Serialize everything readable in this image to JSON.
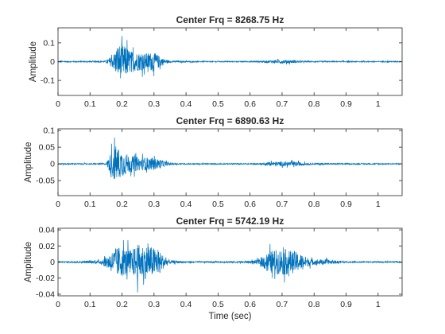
{
  "chart_data": [
    {
      "type": "line",
      "title": "Center Frq = 8268.75 Hz",
      "ylabel": "Amplitude",
      "xlabel": "",
      "xlim": [
        0,
        1.075
      ],
      "ylim": [
        -0.18,
        0.18
      ],
      "xticks": [
        0,
        0.1,
        0.2,
        0.3,
        0.4,
        0.5,
        0.6,
        0.7,
        0.8,
        0.9,
        1
      ],
      "xtick_labels": [
        "0",
        "0.1",
        "0.2",
        "0.3",
        "0.4",
        "0.5",
        "0.6",
        "0.7",
        "0.8",
        "0.9",
        "1"
      ],
      "yticks": [
        -0.1,
        0,
        0.1
      ],
      "ytick_labels": [
        "-0.1",
        "0",
        "0.1"
      ],
      "color": "#0072BD",
      "series": [
        {
          "x": [
            0,
            0.05,
            0.1,
            0.13,
            0.15,
            0.17,
            0.19,
            0.21,
            0.23,
            0.25,
            0.27,
            0.29,
            0.31,
            0.33,
            0.35,
            0.4,
            0.45,
            0.5,
            0.55,
            0.6,
            0.63,
            0.66,
            0.68,
            0.7,
            0.72,
            0.74,
            0.76,
            0.78,
            0.8,
            0.85,
            0.9,
            0.95,
            1.0,
            1.075
          ],
          "values": [
            0.006,
            0.006,
            0.006,
            0.006,
            0.01,
            0.06,
            0.17,
            0.15,
            0.1,
            0.09,
            0.08,
            0.09,
            0.07,
            0.03,
            0.008,
            0.006,
            0.005,
            0.005,
            0.005,
            0.005,
            0.008,
            0.012,
            0.015,
            0.018,
            0.016,
            0.014,
            0.008,
            0.006,
            0.006,
            0.005,
            0.005,
            0.005,
            0.005,
            0.005
          ]
        }
      ]
    },
    {
      "type": "line",
      "title": "Center Frq = 6890.63 Hz",
      "ylabel": "Amplitude",
      "xlabel": "",
      "xlim": [
        0,
        1.075
      ],
      "ylim": [
        -0.095,
        0.105
      ],
      "xticks": [
        0,
        0.1,
        0.2,
        0.3,
        0.4,
        0.5,
        0.6,
        0.7,
        0.8,
        0.9,
        1
      ],
      "xtick_labels": [
        "0",
        "0.1",
        "0.2",
        "0.3",
        "0.4",
        "0.5",
        "0.6",
        "0.7",
        "0.8",
        "0.9",
        "1"
      ],
      "yticks": [
        -0.05,
        0,
        0.05,
        0.1
      ],
      "ytick_labels": [
        "-0.05",
        "0",
        "0.05",
        "0.1"
      ],
      "color": "#0072BD",
      "series": [
        {
          "x": [
            0,
            0.05,
            0.1,
            0.15,
            0.17,
            0.18,
            0.2,
            0.22,
            0.24,
            0.26,
            0.28,
            0.3,
            0.32,
            0.34,
            0.36,
            0.4,
            0.45,
            0.5,
            0.55,
            0.6,
            0.63,
            0.65,
            0.67,
            0.7,
            0.73,
            0.76,
            0.78,
            0.8,
            0.82,
            0.85,
            0.9,
            0.95,
            1.0,
            1.075
          ],
          "values": [
            0.003,
            0.003,
            0.003,
            0.004,
            0.08,
            0.1,
            0.07,
            0.05,
            0.04,
            0.035,
            0.035,
            0.03,
            0.025,
            0.01,
            0.004,
            0.003,
            0.003,
            0.003,
            0.003,
            0.003,
            0.004,
            0.008,
            0.012,
            0.012,
            0.012,
            0.01,
            0.006,
            0.004,
            0.006,
            0.003,
            0.003,
            0.003,
            0.003,
            0.003
          ]
        }
      ]
    },
    {
      "type": "line",
      "title": "Center Frq = 5742.19 Hz",
      "ylabel": "Amplitude",
      "xlabel": "Time (sec)",
      "xlim": [
        0,
        1.075
      ],
      "ylim": [
        -0.042,
        0.042
      ],
      "xticks": [
        0,
        0.1,
        0.2,
        0.3,
        0.4,
        0.5,
        0.6,
        0.7,
        0.8,
        0.9,
        1
      ],
      "xtick_labels": [
        "0",
        "0.1",
        "0.2",
        "0.3",
        "0.4",
        "0.5",
        "0.6",
        "0.7",
        "0.8",
        "0.9",
        "1"
      ],
      "yticks": [
        -0.04,
        -0.02,
        0,
        0.02,
        0.04
      ],
      "ytick_labels": [
        "-0.04",
        "-0.02",
        "0",
        "0.02",
        "0.04"
      ],
      "color": "#0072BD",
      "series": [
        {
          "x": [
            0,
            0.05,
            0.1,
            0.13,
            0.15,
            0.17,
            0.19,
            0.21,
            0.23,
            0.25,
            0.27,
            0.29,
            0.31,
            0.33,
            0.35,
            0.4,
            0.45,
            0.5,
            0.55,
            0.6,
            0.63,
            0.65,
            0.67,
            0.7,
            0.72,
            0.74,
            0.76,
            0.78,
            0.8,
            0.83,
            0.86,
            0.9,
            0.95,
            1.0,
            1.075
          ],
          "values": [
            0.0015,
            0.002,
            0.003,
            0.004,
            0.012,
            0.025,
            0.035,
            0.03,
            0.028,
            0.04,
            0.038,
            0.035,
            0.03,
            0.014,
            0.004,
            0.002,
            0.0015,
            0.0015,
            0.002,
            0.003,
            0.006,
            0.02,
            0.026,
            0.03,
            0.028,
            0.024,
            0.018,
            0.01,
            0.006,
            0.006,
            0.004,
            0.0015,
            0.0015,
            0.0015,
            0.0015
          ]
        }
      ]
    }
  ]
}
